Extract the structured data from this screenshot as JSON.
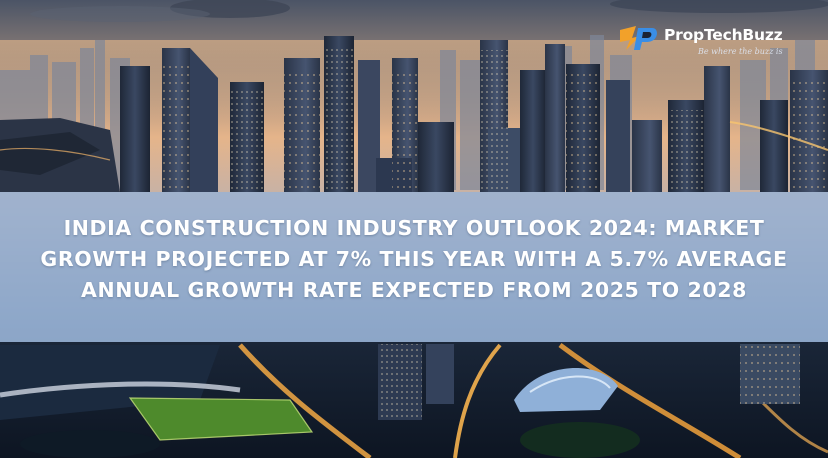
{
  "brand": {
    "name": "PropTechBuzz",
    "tagline": "Be where the buzz is"
  },
  "headline": {
    "lines": [
      "INDIA CONSTRUCTION INDUSTRY OUTLOOK 2024: MARKET",
      "GROWTH PROJECTED AT 7% THIS YEAR WITH A 5.7% AVERAGE",
      "ANNUAL GROWTH RATE EXPECTED FROM 2025 TO 2028"
    ]
  },
  "colors": {
    "banner_overlay": "#96b2d6",
    "headline_text": "#ffffff",
    "logo_orange": "#f2a12a",
    "logo_blue": "#3a8ee6"
  },
  "icons": [
    "proptechbuzz-logo-icon"
  ]
}
